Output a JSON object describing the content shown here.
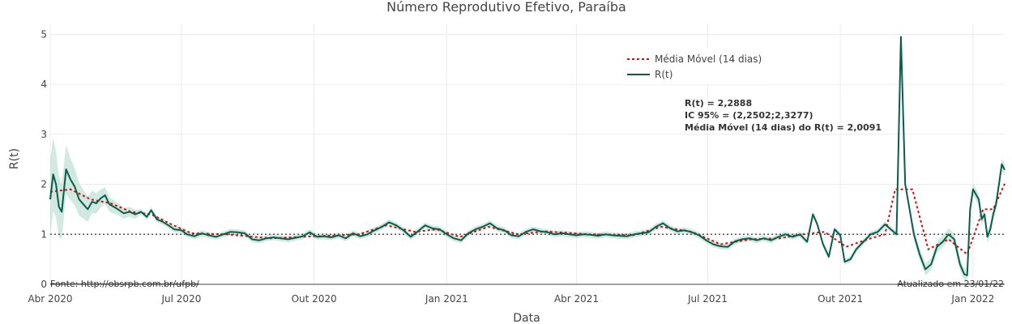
{
  "chart_data": {
    "type": "line",
    "title": "Número Reprodutivo Efetivo, Paraíba",
    "xlabel": "Data",
    "ylabel": "R(t)",
    "ylim": [
      0,
      5.2
    ],
    "y_ticks": [
      "0",
      "1",
      "2",
      "3",
      "4",
      "5"
    ],
    "x_ticks": [
      {
        "date": "2020-04-01",
        "label": "Abr 2020"
      },
      {
        "date": "2020-07-01",
        "label": "Jul 2020"
      },
      {
        "date": "2020-10-01",
        "label": "Out 2020"
      },
      {
        "date": "2021-01-01",
        "label": "Jan 2021"
      },
      {
        "date": "2021-04-01",
        "label": "Abr 2021"
      },
      {
        "date": "2021-07-01",
        "label": "Jul 2021"
      },
      {
        "date": "2021-10-01",
        "label": "Out 2021"
      },
      {
        "date": "2022-01-01",
        "label": "Jan 2022"
      }
    ],
    "xlim": [
      "2020-04-01",
      "2022-01-23"
    ],
    "grid": true,
    "reference_line": 1,
    "legend_position": "top-right",
    "legend": [
      "Média Móvel (14 dias)",
      "R(t)"
    ],
    "colors": {
      "rt": "#0b5d4b",
      "band": "#bfe0d5",
      "ma": "#cc1111",
      "ref": "#555555"
    },
    "series": [
      {
        "name": "R(t)",
        "points": [
          [
            "2020-04-01",
            1.7
          ],
          [
            "2020-04-03",
            2.2
          ],
          [
            "2020-04-05",
            2.0
          ],
          [
            "2020-04-07",
            1.55
          ],
          [
            "2020-04-09",
            1.45
          ],
          [
            "2020-04-12",
            2.3
          ],
          [
            "2020-04-15",
            2.1
          ],
          [
            "2020-04-18",
            1.95
          ],
          [
            "2020-04-21",
            1.7
          ],
          [
            "2020-04-24",
            1.6
          ],
          [
            "2020-04-27",
            1.5
          ],
          [
            "2020-04-30",
            1.65
          ],
          [
            "2020-05-03",
            1.62
          ],
          [
            "2020-05-06",
            1.72
          ],
          [
            "2020-05-09",
            1.78
          ],
          [
            "2020-05-12",
            1.6
          ],
          [
            "2020-05-15",
            1.55
          ],
          [
            "2020-05-18",
            1.5
          ],
          [
            "2020-05-22",
            1.42
          ],
          [
            "2020-05-26",
            1.45
          ],
          [
            "2020-05-30",
            1.4
          ],
          [
            "2020-06-03",
            1.45
          ],
          [
            "2020-06-07",
            1.35
          ],
          [
            "2020-06-10",
            1.48
          ],
          [
            "2020-06-14",
            1.3
          ],
          [
            "2020-06-18",
            1.25
          ],
          [
            "2020-06-22",
            1.18
          ],
          [
            "2020-06-26",
            1.1
          ],
          [
            "2020-07-01",
            1.08
          ],
          [
            "2020-07-05",
            1.0
          ],
          [
            "2020-07-10",
            0.96
          ],
          [
            "2020-07-15",
            1.02
          ],
          [
            "2020-07-20",
            0.98
          ],
          [
            "2020-07-25",
            0.95
          ],
          [
            "2020-07-30",
            1.0
          ],
          [
            "2020-08-04",
            1.05
          ],
          [
            "2020-08-09",
            1.04
          ],
          [
            "2020-08-14",
            1.02
          ],
          [
            "2020-08-19",
            0.9
          ],
          [
            "2020-08-24",
            0.88
          ],
          [
            "2020-08-29",
            0.92
          ],
          [
            "2020-09-03",
            0.94
          ],
          [
            "2020-09-08",
            0.92
          ],
          [
            "2020-09-13",
            0.9
          ],
          [
            "2020-09-18",
            0.93
          ],
          [
            "2020-09-23",
            0.96
          ],
          [
            "2020-09-28",
            1.04
          ],
          [
            "2020-10-03",
            0.95
          ],
          [
            "2020-10-08",
            0.96
          ],
          [
            "2020-10-13",
            0.94
          ],
          [
            "2020-10-18",
            0.98
          ],
          [
            "2020-10-23",
            0.92
          ],
          [
            "2020-10-28",
            1.02
          ],
          [
            "2020-11-02",
            0.96
          ],
          [
            "2020-11-07",
            1.0
          ],
          [
            "2020-11-12",
            1.08
          ],
          [
            "2020-11-17",
            1.15
          ],
          [
            "2020-11-22",
            1.24
          ],
          [
            "2020-11-27",
            1.18
          ],
          [
            "2020-12-02",
            1.08
          ],
          [
            "2020-12-07",
            0.95
          ],
          [
            "2020-12-12",
            1.06
          ],
          [
            "2020-12-17",
            1.18
          ],
          [
            "2020-12-22",
            1.12
          ],
          [
            "2020-12-27",
            1.1
          ],
          [
            "2021-01-01",
            1.0
          ],
          [
            "2021-01-06",
            0.92
          ],
          [
            "2021-01-11",
            0.88
          ],
          [
            "2021-01-16",
            1.02
          ],
          [
            "2021-01-21",
            1.1
          ],
          [
            "2021-01-26",
            1.15
          ],
          [
            "2021-01-31",
            1.22
          ],
          [
            "2021-02-05",
            1.12
          ],
          [
            "2021-02-10",
            1.08
          ],
          [
            "2021-02-15",
            0.98
          ],
          [
            "2021-02-20",
            0.96
          ],
          [
            "2021-02-25",
            1.05
          ],
          [
            "2021-03-02",
            1.1
          ],
          [
            "2021-03-07",
            1.06
          ],
          [
            "2021-03-12",
            1.04
          ],
          [
            "2021-03-17",
            1.0
          ],
          [
            "2021-03-22",
            1.02
          ],
          [
            "2021-03-27",
            1.0
          ],
          [
            "2021-04-01",
            0.98
          ],
          [
            "2021-04-06",
            1.0
          ],
          [
            "2021-04-11",
            0.99
          ],
          [
            "2021-04-16",
            0.97
          ],
          [
            "2021-04-21",
            1.0
          ],
          [
            "2021-04-26",
            0.98
          ],
          [
            "2021-05-01",
            0.97
          ],
          [
            "2021-05-06",
            0.96
          ],
          [
            "2021-05-11",
            1.0
          ],
          [
            "2021-05-16",
            1.02
          ],
          [
            "2021-05-21",
            1.04
          ],
          [
            "2021-05-26",
            1.15
          ],
          [
            "2021-05-31",
            1.22
          ],
          [
            "2021-06-05",
            1.12
          ],
          [
            "2021-06-10",
            1.06
          ],
          [
            "2021-06-15",
            1.08
          ],
          [
            "2021-06-20",
            1.04
          ],
          [
            "2021-06-25",
            0.98
          ],
          [
            "2021-06-30",
            0.88
          ],
          [
            "2021-07-05",
            0.8
          ],
          [
            "2021-07-10",
            0.76
          ],
          [
            "2021-07-15",
            0.75
          ],
          [
            "2021-07-20",
            0.86
          ],
          [
            "2021-07-25",
            0.9
          ],
          [
            "2021-07-30",
            0.92
          ],
          [
            "2021-08-04",
            0.88
          ],
          [
            "2021-08-09",
            0.92
          ],
          [
            "2021-08-14",
            0.88
          ],
          [
            "2021-08-19",
            0.95
          ],
          [
            "2021-08-24",
            1.0
          ],
          [
            "2021-08-29",
            0.95
          ],
          [
            "2021-09-03",
            1.0
          ],
          [
            "2021-09-08",
            0.85
          ],
          [
            "2021-09-12",
            1.4
          ],
          [
            "2021-09-15",
            1.2
          ],
          [
            "2021-09-19",
            0.8
          ],
          [
            "2021-09-23",
            0.55
          ],
          [
            "2021-09-27",
            1.1
          ],
          [
            "2021-10-01",
            0.98
          ],
          [
            "2021-10-04",
            0.45
          ],
          [
            "2021-10-08",
            0.5
          ],
          [
            "2021-10-12",
            0.7
          ],
          [
            "2021-10-17",
            0.85
          ],
          [
            "2021-10-22",
            1.0
          ],
          [
            "2021-10-27",
            1.05
          ],
          [
            "2021-11-01",
            1.2
          ],
          [
            "2021-11-05",
            1.1
          ],
          [
            "2021-11-09",
            1.0
          ],
          [
            "2021-11-12",
            4.95
          ],
          [
            "2021-11-15",
            2.0
          ],
          [
            "2021-11-18",
            1.5
          ],
          [
            "2021-11-21",
            1.0
          ],
          [
            "2021-11-25",
            0.6
          ],
          [
            "2021-11-29",
            0.3
          ],
          [
            "2021-12-03",
            0.4
          ],
          [
            "2021-12-07",
            0.75
          ],
          [
            "2021-12-11",
            0.85
          ],
          [
            "2021-12-15",
            1.0
          ],
          [
            "2021-12-19",
            0.9
          ],
          [
            "2021-12-23",
            0.4
          ],
          [
            "2021-12-26",
            0.2
          ],
          [
            "2021-12-28",
            0.18
          ],
          [
            "2021-12-30",
            1.5
          ],
          [
            "2022-01-01",
            1.9
          ],
          [
            "2022-01-03",
            1.8
          ],
          [
            "2022-01-05",
            1.7
          ],
          [
            "2022-01-07",
            1.3
          ],
          [
            "2022-01-09",
            1.4
          ],
          [
            "2022-01-11",
            0.95
          ],
          [
            "2022-01-13",
            1.1
          ],
          [
            "2022-01-15",
            1.4
          ],
          [
            "2022-01-17",
            1.6
          ],
          [
            "2022-01-19",
            2.0
          ],
          [
            "2022-01-21",
            2.4
          ],
          [
            "2022-01-23",
            2.29
          ]
        ]
      },
      {
        "name": "Média Móvel (14 dias)",
        "points": [
          [
            "2020-04-01",
            1.85
          ],
          [
            "2020-04-15",
            1.9
          ],
          [
            "2020-04-29",
            1.7
          ],
          [
            "2020-05-13",
            1.62
          ],
          [
            "2020-05-27",
            1.45
          ],
          [
            "2020-06-10",
            1.4
          ],
          [
            "2020-06-24",
            1.2
          ],
          [
            "2020-07-08",
            1.02
          ],
          [
            "2020-08-01",
            1.0
          ],
          [
            "2020-09-01",
            0.92
          ],
          [
            "2020-10-01",
            0.96
          ],
          [
            "2020-11-01",
            1.0
          ],
          [
            "2020-11-20",
            1.18
          ],
          [
            "2020-12-10",
            1.05
          ],
          [
            "2020-12-25",
            1.1
          ],
          [
            "2021-01-10",
            0.95
          ],
          [
            "2021-01-30",
            1.15
          ],
          [
            "2021-02-20",
            1.0
          ],
          [
            "2021-03-10",
            1.06
          ],
          [
            "2021-04-10",
            1.0
          ],
          [
            "2021-05-10",
            0.98
          ],
          [
            "2021-05-30",
            1.15
          ],
          [
            "2021-06-20",
            1.05
          ],
          [
            "2021-07-10",
            0.8
          ],
          [
            "2021-07-31",
            0.9
          ],
          [
            "2021-08-20",
            0.92
          ],
          [
            "2021-09-05",
            1.0
          ],
          [
            "2021-09-20",
            1.05
          ],
          [
            "2021-10-05",
            0.75
          ],
          [
            "2021-10-20",
            0.9
          ],
          [
            "2021-11-01",
            1.0
          ],
          [
            "2021-11-08",
            1.9
          ],
          [
            "2021-11-20",
            1.9
          ],
          [
            "2021-12-01",
            0.7
          ],
          [
            "2021-12-15",
            0.9
          ],
          [
            "2021-12-28",
            0.6
          ],
          [
            "2022-01-08",
            1.5
          ],
          [
            "2022-01-15",
            1.5
          ],
          [
            "2022-01-23",
            2.01
          ]
        ]
      }
    ],
    "annotations": [
      {
        "text": "R(t) = 2,2888"
      },
      {
        "text": "IC 95% = (2,2502;2,3277)"
      },
      {
        "text": "Média Móvel (14 dias) do R(t) = 2,0091"
      }
    ],
    "source_left": "Fonte: http://obsrpb.com.br/ufpb/",
    "source_right": "Atualizado em 23/01/22"
  }
}
